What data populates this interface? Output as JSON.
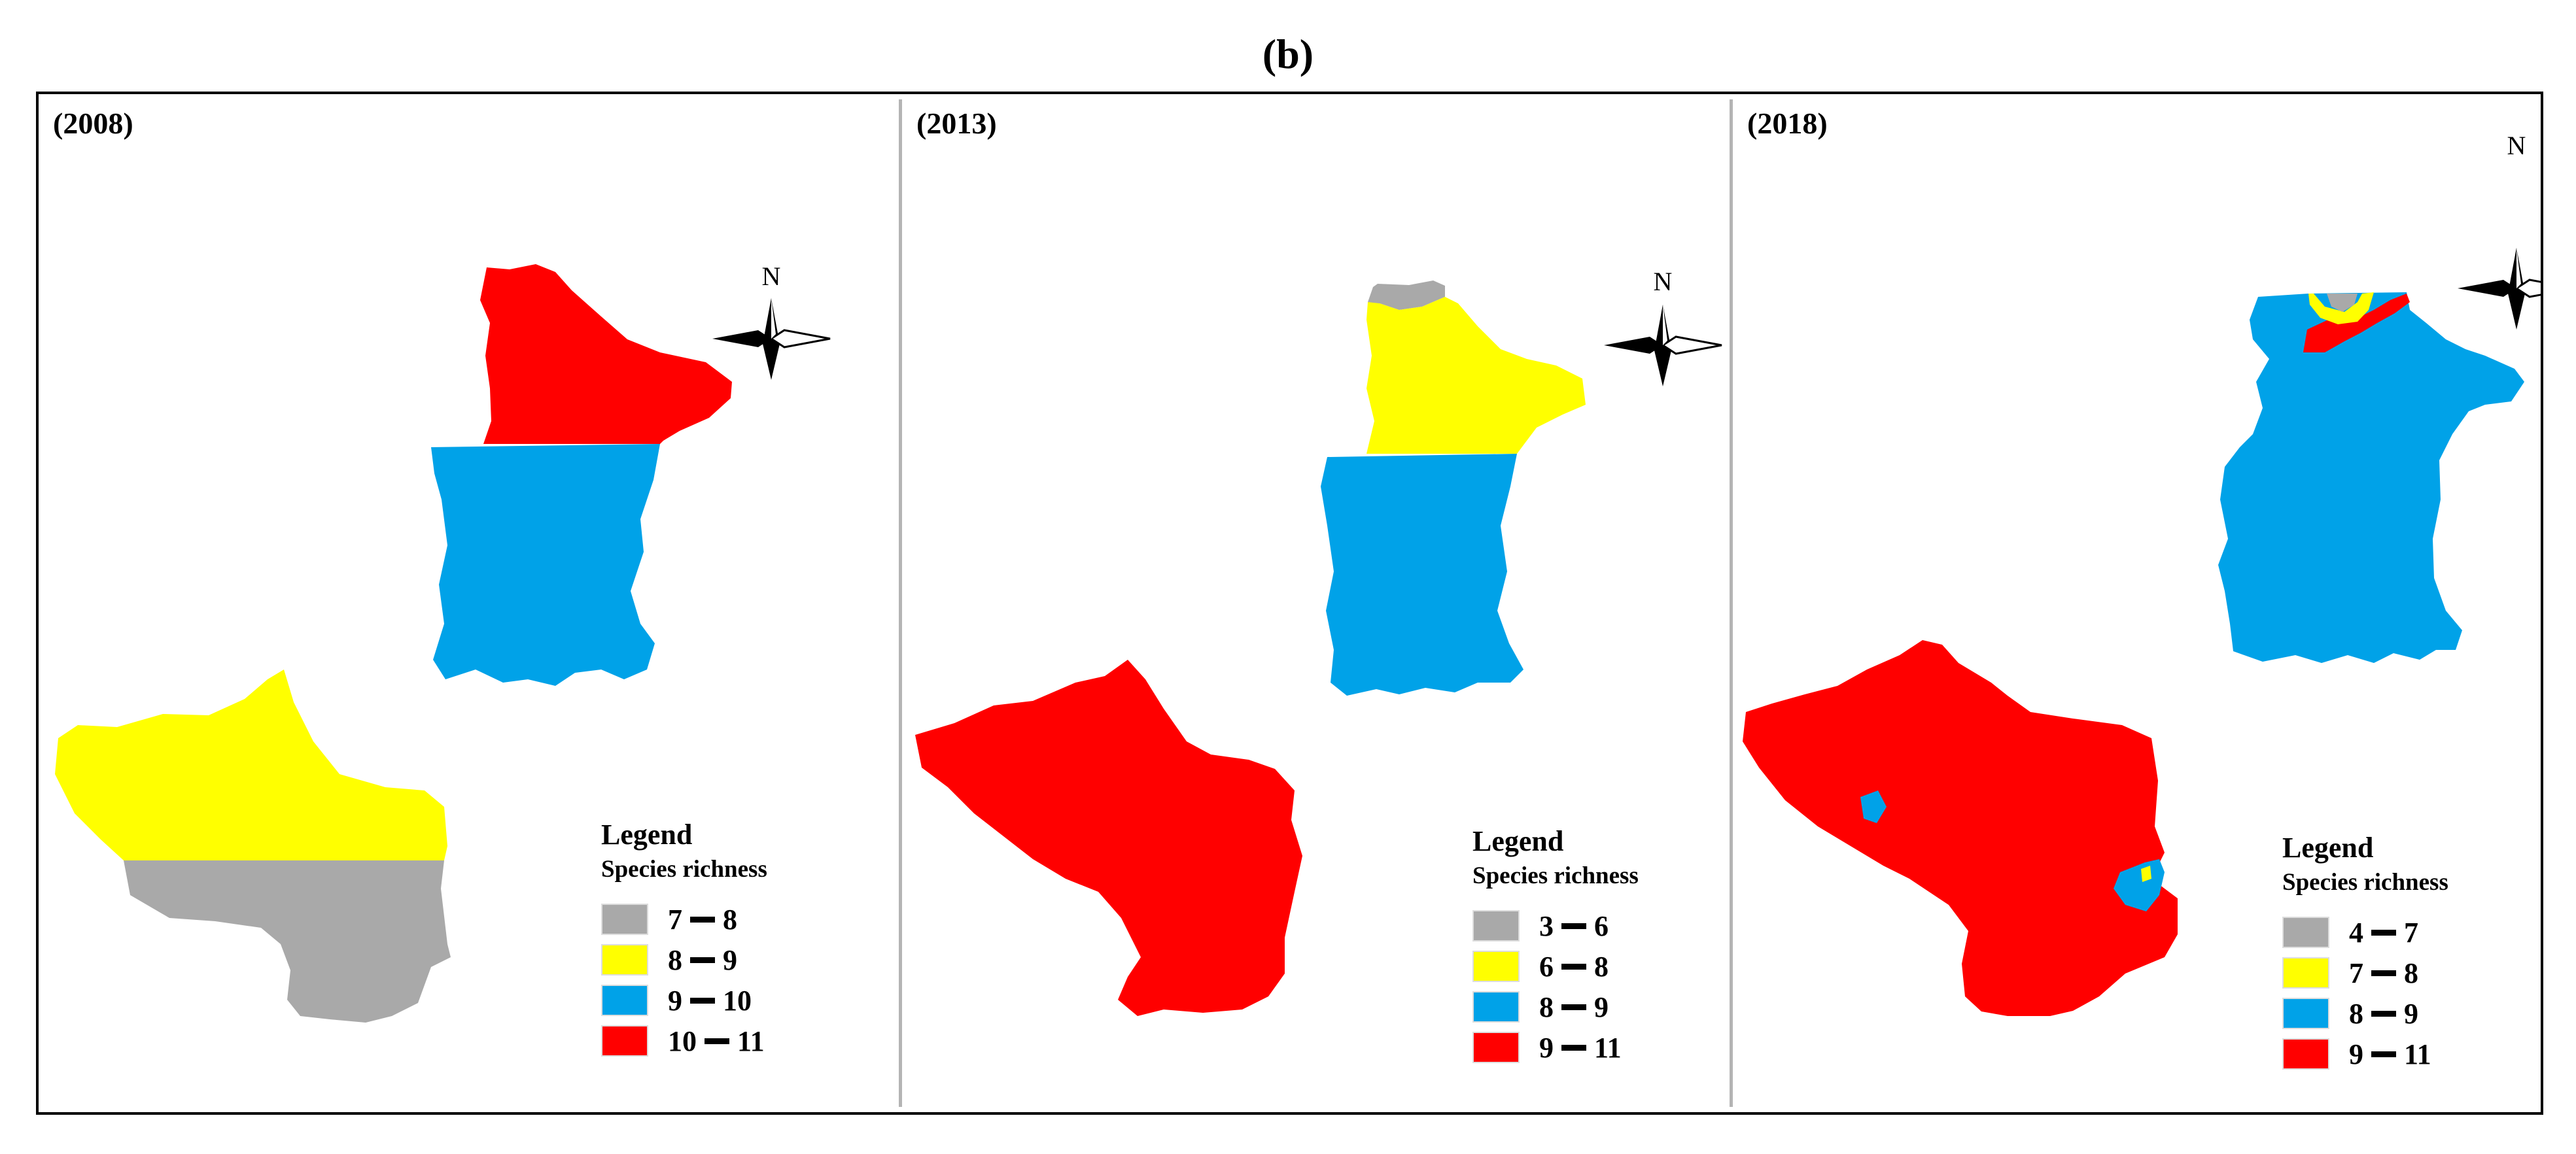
{
  "figure_label": "(b)",
  "panels": [
    {
      "year": "(2008)",
      "north": "N",
      "legend_title": "Legend",
      "legend_subtitle": "Species richness",
      "legend": [
        {
          "low": "7",
          "high": "8",
          "color": "#a9a9a9"
        },
        {
          "low": "8",
          "high": "9",
          "color": "#ffff00"
        },
        {
          "low": "9",
          "high": "10",
          "color": "#00a2e8"
        },
        {
          "low": "10",
          "high": "11",
          "color": "#ff0000"
        }
      ],
      "regions": [
        {
          "name": "north-zone",
          "class": "10-11",
          "color": "#ff0000"
        },
        {
          "name": "middle-zone",
          "class": "9-10",
          "color": "#00a2e8"
        },
        {
          "name": "south-upper-zone",
          "class": "8-9",
          "color": "#ffff00"
        },
        {
          "name": "south-lower-zone",
          "class": "7-8",
          "color": "#a9a9a9"
        }
      ]
    },
    {
      "year": "(2013)",
      "north": "N",
      "legend_title": "Legend",
      "legend_subtitle": "Species richness",
      "legend": [
        {
          "low": "3",
          "high": "6",
          "color": "#a9a9a9"
        },
        {
          "low": "6",
          "high": "8",
          "color": "#ffff00"
        },
        {
          "low": "8",
          "high": "9",
          "color": "#00a2e8"
        },
        {
          "low": "9",
          "high": "11",
          "color": "#ff0000"
        }
      ],
      "regions": [
        {
          "name": "north-tip",
          "class": "3-6",
          "color": "#a9a9a9"
        },
        {
          "name": "north-zone",
          "class": "6-8",
          "color": "#ffff00"
        },
        {
          "name": "middle-zone",
          "class": "8-9",
          "color": "#00a2e8"
        },
        {
          "name": "south-zone",
          "class": "9-11",
          "color": "#ff0000"
        }
      ]
    },
    {
      "year": "(2018)",
      "north": "N",
      "legend_title": "Legend",
      "legend_subtitle": "Species richness",
      "legend": [
        {
          "low": "4",
          "high": "7",
          "color": "#a9a9a9"
        },
        {
          "low": "7",
          "high": "8",
          "color": "#ffff00"
        },
        {
          "low": "8",
          "high": "9",
          "color": "#00a2e8"
        },
        {
          "low": "9",
          "high": "11",
          "color": "#ff0000"
        }
      ],
      "regions": [
        {
          "name": "north-middle-zone",
          "class": "8-9",
          "color": "#00a2e8"
        },
        {
          "name": "north-patch-red",
          "class": "9-11",
          "color": "#ff0000"
        },
        {
          "name": "north-patch-yellow",
          "class": "7-8",
          "color": "#ffff00"
        },
        {
          "name": "north-patch-gray",
          "class": "4-7",
          "color": "#a9a9a9"
        },
        {
          "name": "south-zone",
          "class": "9-11",
          "color": "#ff0000"
        },
        {
          "name": "south-patch-blue",
          "class": "8-9",
          "color": "#00a2e8"
        }
      ]
    }
  ]
}
